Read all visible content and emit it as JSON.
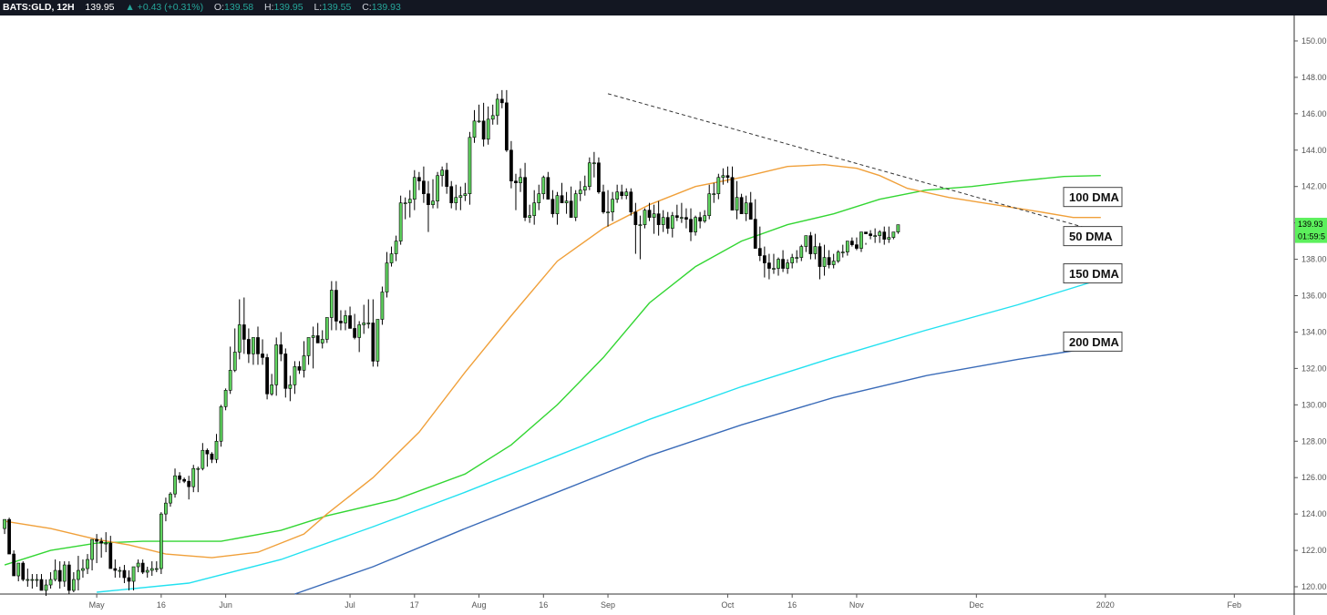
{
  "header": {
    "symbol": "BATS:GLD, 12H",
    "last": "139.95",
    "change": "▲ +0.43 (+0.31%)",
    "o_label": "O:",
    "o_value": "139.58",
    "h_label": "H:",
    "h_value": "139.95",
    "l_label": "L:",
    "l_value": "139.55",
    "c_label": "C:",
    "c_value": "139.93"
  },
  "colors": {
    "up_candle": "#5fd35f",
    "down_candle": "#000000",
    "dma50": "#f0a03a",
    "dma100": "#33d633",
    "dma150": "#22e1f0",
    "dma200": "#3a6bb8",
    "trendline": "#333333",
    "price_tag": "#5cf05c",
    "countdown_tag": "#5cf05c"
  },
  "chart_data": {
    "type": "candlestick",
    "y_axis": {
      "min": 119.6,
      "max": 151.4,
      "ticks": [
        120,
        122,
        124,
        126,
        128,
        130,
        132,
        134,
        136,
        138,
        140,
        142,
        144,
        146,
        148,
        150
      ],
      "tick_labels": [
        "120.00",
        "122.00",
        "124.00",
        "126.00",
        "128.00",
        "130.00",
        "132.00",
        "134.00",
        "136.00",
        "138.00",
        "140.00",
        "142.00",
        "144.00",
        "146.00",
        "148.00",
        "150.00"
      ]
    },
    "x_axis": {
      "unit": "12H bar index",
      "min": -1,
      "max": 280,
      "ticks": [
        {
          "label": "May",
          "x": 20
        },
        {
          "label": "16",
          "x": 34
        },
        {
          "label": "Jun",
          "x": 48
        },
        {
          "label": "Jul",
          "x": 75
        },
        {
          "label": "17",
          "x": 89
        },
        {
          "label": "Aug",
          "x": 103
        },
        {
          "label": "16",
          "x": 117
        },
        {
          "label": "Sep",
          "x": 131
        },
        {
          "label": "Oct",
          "x": 157
        },
        {
          "label": "16",
          "x": 171
        },
        {
          "label": "Nov",
          "x": 185
        },
        {
          "label": "Dec",
          "x": 211
        },
        {
          "label": "2020",
          "x": 239
        },
        {
          "label": "Feb",
          "x": 267
        }
      ]
    },
    "series": [
      {
        "name": "100 DMA",
        "points": [
          [
            0,
            121.2
          ],
          [
            10,
            122.0
          ],
          [
            20,
            122.4
          ],
          [
            30,
            122.5
          ],
          [
            47,
            122.5
          ],
          [
            60,
            123.1
          ],
          [
            70,
            123.9
          ],
          [
            85,
            124.8
          ],
          [
            100,
            126.2
          ],
          [
            110,
            127.8
          ],
          [
            120,
            130.0
          ],
          [
            130,
            132.6
          ],
          [
            140,
            135.6
          ],
          [
            150,
            137.6
          ],
          [
            160,
            139.0
          ],
          [
            170,
            139.9
          ],
          [
            180,
            140.5
          ],
          [
            190,
            141.3
          ],
          [
            200,
            141.8
          ],
          [
            210,
            142.0
          ],
          [
            220,
            142.3
          ],
          [
            230,
            142.55
          ],
          [
            238,
            142.6
          ]
        ]
      },
      {
        "name": "50 DMA",
        "points": [
          [
            0,
            123.6
          ],
          [
            10,
            123.2
          ],
          [
            20,
            122.6
          ],
          [
            27,
            122.3
          ],
          [
            35,
            121.8
          ],
          [
            45,
            121.6
          ],
          [
            55,
            121.9
          ],
          [
            65,
            122.9
          ],
          [
            70,
            124.0
          ],
          [
            80,
            126.0
          ],
          [
            90,
            128.5
          ],
          [
            100,
            131.8
          ],
          [
            110,
            134.9
          ],
          [
            120,
            137.9
          ],
          [
            130,
            139.7
          ],
          [
            140,
            141.0
          ],
          [
            150,
            142.0
          ],
          [
            160,
            142.5
          ],
          [
            170,
            143.1
          ],
          [
            178,
            143.2
          ],
          [
            185,
            143.0
          ],
          [
            190,
            142.6
          ],
          [
            196,
            141.9
          ],
          [
            205,
            141.4
          ],
          [
            215,
            141.0
          ],
          [
            225,
            140.6
          ],
          [
            232,
            140.3
          ],
          [
            238,
            140.3
          ]
        ]
      },
      {
        "name": "150 DMA",
        "points": [
          [
            20,
            119.7
          ],
          [
            40,
            120.2
          ],
          [
            60,
            121.5
          ],
          [
            80,
            123.3
          ],
          [
            100,
            125.2
          ],
          [
            120,
            127.2
          ],
          [
            140,
            129.2
          ],
          [
            160,
            131.0
          ],
          [
            180,
            132.6
          ],
          [
            200,
            134.1
          ],
          [
            220,
            135.5
          ],
          [
            238,
            136.9
          ]
        ]
      },
      {
        "name": "200 DMA",
        "points": [
          [
            63,
            119.6
          ],
          [
            80,
            121.1
          ],
          [
            100,
            123.2
          ],
          [
            120,
            125.2
          ],
          [
            140,
            127.2
          ],
          [
            160,
            128.9
          ],
          [
            180,
            130.4
          ],
          [
            200,
            131.6
          ],
          [
            220,
            132.5
          ],
          [
            238,
            133.2
          ]
        ]
      }
    ],
    "trendline": {
      "from": [
        131,
        147.1
      ],
      "to": [
        238,
        139.5
      ]
    },
    "candles_open": [
      123.2,
      123.7,
      121.8,
      120.6,
      121.3,
      120.4,
      120.4,
      120.4,
      120.4,
      119.8,
      120.1,
      120.4,
      120.9,
      120.3,
      121.2,
      119.8,
      120.4,
      120.9,
      121.0,
      121.5,
      122.6,
      122.5,
      122.4,
      122.4,
      121.0,
      120.9,
      120.9,
      120.5,
      120.3,
      121.1,
      121.3,
      120.8,
      120.9,
      121.0,
      121.0,
      124.0,
      124.6,
      125.1,
      126.1,
      125.9,
      125.8,
      125.5,
      126.5,
      126.5,
      127.5,
      127.3,
      127.0,
      128.0,
      129.9,
      130.8,
      131.9,
      132.9,
      134.4,
      133.6,
      132.8,
      133.7,
      132.8,
      132.6,
      130.6,
      131.1,
      133.3,
      132.8,
      130.9,
      131.1,
      132.1,
      131.9,
      132.7,
      133.7,
      133.8,
      133.4,
      133.6,
      134.8,
      136.3,
      134.6,
      134.5,
      134.9,
      134.2,
      133.7,
      134.4,
      134.5,
      134.5,
      132.4,
      134.7,
      136.2,
      137.8,
      138.3,
      139.0,
      141.1,
      141.1,
      141.3,
      142.5,
      142.3,
      141.6,
      141.0,
      141.2,
      142.6,
      142.9,
      142.0,
      141.1,
      141.4,
      141.5,
      141.6,
      144.7,
      145.6,
      145.6,
      144.6,
      145.7,
      145.9,
      146.8,
      146.6,
      144.0,
      142.3,
      142.2,
      142.5,
      140.3,
      140.4,
      141.1,
      141.6,
      142.5,
      141.3,
      140.5,
      141.5,
      141.1,
      141.2,
      140.3,
      141.6,
      141.8,
      142.0,
      143.3,
      143.3,
      141.7,
      140.6,
      140.6,
      141.3,
      141.7,
      141.5,
      141.7,
      140.6,
      139.9,
      139.9,
      140.7,
      140.3,
      140.5,
      139.9,
      140.3,
      139.7,
      140.4,
      140.3,
      140.3,
      140.2,
      139.5,
      140.3,
      140.1,
      140.4,
      141.6,
      141.6,
      142.5,
      142.6,
      142.5,
      140.7,
      141.4,
      140.5,
      141.1,
      140.2,
      138.6,
      138.2,
      137.8,
      137.5,
      137.5,
      138.0,
      137.5,
      137.8,
      138.1,
      138.1,
      138.7,
      139.3,
      138.3,
      138.7,
      137.6,
      138.1,
      137.7,
      137.9,
      138.4,
      138.4,
      139.0,
      138.8,
      138.6,
      139.5,
      139.4,
      139.3,
      139.3,
      139.5,
      139.1,
      139.2,
      139.5
    ],
    "candles_high": [
      123.5,
      123.8,
      122.0,
      121.3,
      121.4,
      121.0,
      120.7,
      120.7,
      120.7,
      120.4,
      120.8,
      121.5,
      121.4,
      121.4,
      121.4,
      120.8,
      121.7,
      121.5,
      121.8,
      121.8,
      122.9,
      122.7,
      123.0,
      122.8,
      121.5,
      121.1,
      121.2,
      120.9,
      120.9,
      121.5,
      121.5,
      121.1,
      121.4,
      121.4,
      124.1,
      124.9,
      125.2,
      126.5,
      126.3,
      126.0,
      126.1,
      126.7,
      126.6,
      127.9,
      127.6,
      127.4,
      128.4,
      130.0,
      130.9,
      133.2,
      134.2,
      135.8,
      135.9,
      134.2,
      133.7,
      134.3,
      133.6,
      132.8,
      131.7,
      133.7,
      134.0,
      133.1,
      131.6,
      132.4,
      132.4,
      133.5,
      133.6,
      134.3,
      134.5,
      134.1,
      134.8,
      136.8,
      136.8,
      135.2,
      135.2,
      135.4,
      135.0,
      134.6,
      135.5,
      135.8,
      135.8,
      133.1,
      136.5,
      138.4,
      138.7,
      139.3,
      141.5,
      141.4,
      141.8,
      142.9,
      142.8,
      143.1,
      142.3,
      142.4,
      142.8,
      143.1,
      143.3,
      142.3,
      142.1,
      142.0,
      142.2,
      145.0,
      146.2,
      146.5,
      146.6,
      146.4,
      146.5,
      147.1,
      147.3,
      147.3,
      144.5,
      142.7,
      143.0,
      143.3,
      141.0,
      141.8,
      142.1,
      142.6,
      142.8,
      141.8,
      141.7,
      142.2,
      141.7,
      142.0,
      141.8,
      142.3,
      142.6,
      143.6,
      143.9,
      143.6,
      142.1,
      141.8,
      141.7,
      142.1,
      142.1,
      141.9,
      141.9,
      141.1,
      140.4,
      140.8,
      141.1,
      141.0,
      141.2,
      140.7,
      140.6,
      140.6,
      141.0,
      141.1,
      140.8,
      140.8,
      140.4,
      140.6,
      140.7,
      142.1,
      142.2,
      142.7,
      143.0,
      143.1,
      143.1,
      142.3,
      141.6,
      141.5,
      141.7,
      141.3,
      139.8,
      138.7,
      138.3,
      138.3,
      138.1,
      138.5,
      138.0,
      138.3,
      138.5,
      138.8,
      139.0,
      139.5,
      139.4,
      138.9,
      138.8,
      138.5,
      138.3,
      138.5,
      138.8,
      138.9,
      139.2,
      139.2,
      139.1,
      138.9,
      139.6,
      139.7,
      139.6,
      139.8,
      139.8,
      139.5,
      139.6,
      139.9
    ],
    "candles_low": [
      122.9,
      123.5,
      121.1,
      120.3,
      120.3,
      120.0,
      119.9,
      120.0,
      119.9,
      119.5,
      119.9,
      120.3,
      119.9,
      120.0,
      119.6,
      119.7,
      119.8,
      120.5,
      120.7,
      120.9,
      121.3,
      121.6,
      121.9,
      121.8,
      120.5,
      120.5,
      120.2,
      119.8,
      119.8,
      120.8,
      120.7,
      120.5,
      120.6,
      120.8,
      120.7,
      123.6,
      124.4,
      124.9,
      125.7,
      125.7,
      124.8,
      125.2,
      125.2,
      126.4,
      126.6,
      126.8,
      126.8,
      127.7,
      129.7,
      130.6,
      131.8,
      132.5,
      132.8,
      132.3,
      132.2,
      132.2,
      132.2,
      130.3,
      130.5,
      130.5,
      132.4,
      130.4,
      130.2,
      130.6,
      131.7,
      131.5,
      132.2,
      132.0,
      133.5,
      133.1,
      133.4,
      134.1,
      134.1,
      134.1,
      134.1,
      134.2,
      133.6,
      132.9,
      133.9,
      134.2,
      132.1,
      132.1,
      134.4,
      135.9,
      137.6,
      137.9,
      138.8,
      140.2,
      140.3,
      140.7,
      141.8,
      141.1,
      139.5,
      140.8,
      140.8,
      142.0,
      141.6,
      140.8,
      140.7,
      140.7,
      141.2,
      141.0,
      144.4,
      145.5,
      144.2,
      144.3,
      145.4,
      145.4,
      146.3,
      143.9,
      141.9,
      140.7,
      141.7,
      140.1,
      140.0,
      139.9,
      140.7,
      141.3,
      141.4,
      140.3,
      139.9,
      141.2,
      140.5,
      140.8,
      140.1,
      141.2,
      141.5,
      141.8,
      142.5,
      141.6,
      140.5,
      139.8,
      140.1,
      141.1,
      141.3,
      141.3,
      140.4,
      138.3,
      138.0,
      139.7,
      140.1,
      139.4,
      139.3,
      139.5,
      139.4,
      139.2,
      140.1,
      140.0,
      139.7,
      139.0,
      139.3,
      139.7,
      140.0,
      140.2,
      141.1,
      141.3,
      142.1,
      142.2,
      142.1,
      140.2,
      140.5,
      140.1,
      140.8,
      139.4,
      137.9,
      137.0,
      136.9,
      137.2,
      137.1,
      137.3,
      137.2,
      137.5,
      137.8,
      137.9,
      138.4,
      138.0,
      138.0,
      136.9,
      137.1,
      137.5,
      137.5,
      137.8,
      138.1,
      138.2,
      138.7,
      138.5,
      138.4,
      138.8,
      139.1,
      138.9,
      138.9,
      138.8,
      138.9,
      139.1,
      139.4
    ],
    "candles_close": [
      123.7,
      121.8,
      120.6,
      121.3,
      120.4,
      120.4,
      120.4,
      120.4,
      119.8,
      120.1,
      120.4,
      120.9,
      120.3,
      121.2,
      119.8,
      120.4,
      120.9,
      121.0,
      121.5,
      122.6,
      122.5,
      122.4,
      122.4,
      121.0,
      120.9,
      120.9,
      120.5,
      120.3,
      121.1,
      121.3,
      120.8,
      120.9,
      121.0,
      121.0,
      124.0,
      124.6,
      125.1,
      126.1,
      125.9,
      125.8,
      125.5,
      126.5,
      126.5,
      127.5,
      127.3,
      127.0,
      128.0,
      129.9,
      130.8,
      131.9,
      132.9,
      134.4,
      133.6,
      132.8,
      133.7,
      132.8,
      132.6,
      130.6,
      131.1,
      133.3,
      132.8,
      130.9,
      131.1,
      132.1,
      131.9,
      132.7,
      133.7,
      133.8,
      133.4,
      133.6,
      134.8,
      136.3,
      134.6,
      134.5,
      134.9,
      134.2,
      133.7,
      134.4,
      134.5,
      134.5,
      132.4,
      134.7,
      136.2,
      137.8,
      138.3,
      139.0,
      141.1,
      141.1,
      141.3,
      142.5,
      142.3,
      141.6,
      141.0,
      141.2,
      142.6,
      142.9,
      142.0,
      141.1,
      141.4,
      141.5,
      141.6,
      144.7,
      145.6,
      145.6,
      144.6,
      145.7,
      145.9,
      146.8,
      146.6,
      144.0,
      142.3,
      142.2,
      142.5,
      140.3,
      140.4,
      141.1,
      141.6,
      142.5,
      141.3,
      140.5,
      141.5,
      141.1,
      141.2,
      140.3,
      141.6,
      141.8,
      142.0,
      143.3,
      143.3,
      141.7,
      140.6,
      140.6,
      141.3,
      141.7,
      141.5,
      141.7,
      140.6,
      139.9,
      139.9,
      140.7,
      140.3,
      140.5,
      139.9,
      140.3,
      139.7,
      140.4,
      140.3,
      140.3,
      140.2,
      139.5,
      140.3,
      140.1,
      140.4,
      141.6,
      141.6,
      142.5,
      142.6,
      142.5,
      140.7,
      141.4,
      140.5,
      141.1,
      140.2,
      138.6,
      138.2,
      137.8,
      137.5,
      137.5,
      138.0,
      137.5,
      137.8,
      138.1,
      138.1,
      138.7,
      139.3,
      138.3,
      138.7,
      137.6,
      138.1,
      137.7,
      137.9,
      138.4,
      138.4,
      139.0,
      138.8,
      138.6,
      139.5,
      139.4,
      139.3,
      139.3,
      139.5,
      139.1,
      139.2,
      139.5,
      139.9
    ],
    "labels": [
      {
        "text": "100 DMA",
        "y": 141.4
      },
      {
        "text": "50 DMA",
        "y": 139.25
      },
      {
        "text": "150 DMA",
        "y": 137.2
      },
      {
        "text": "200 DMA",
        "y": 133.45
      }
    ],
    "price_tag": {
      "text": "139.93",
      "y": 139.93
    },
    "countdown_tag": {
      "text": "01:59:5",
      "y": 139.25
    }
  }
}
